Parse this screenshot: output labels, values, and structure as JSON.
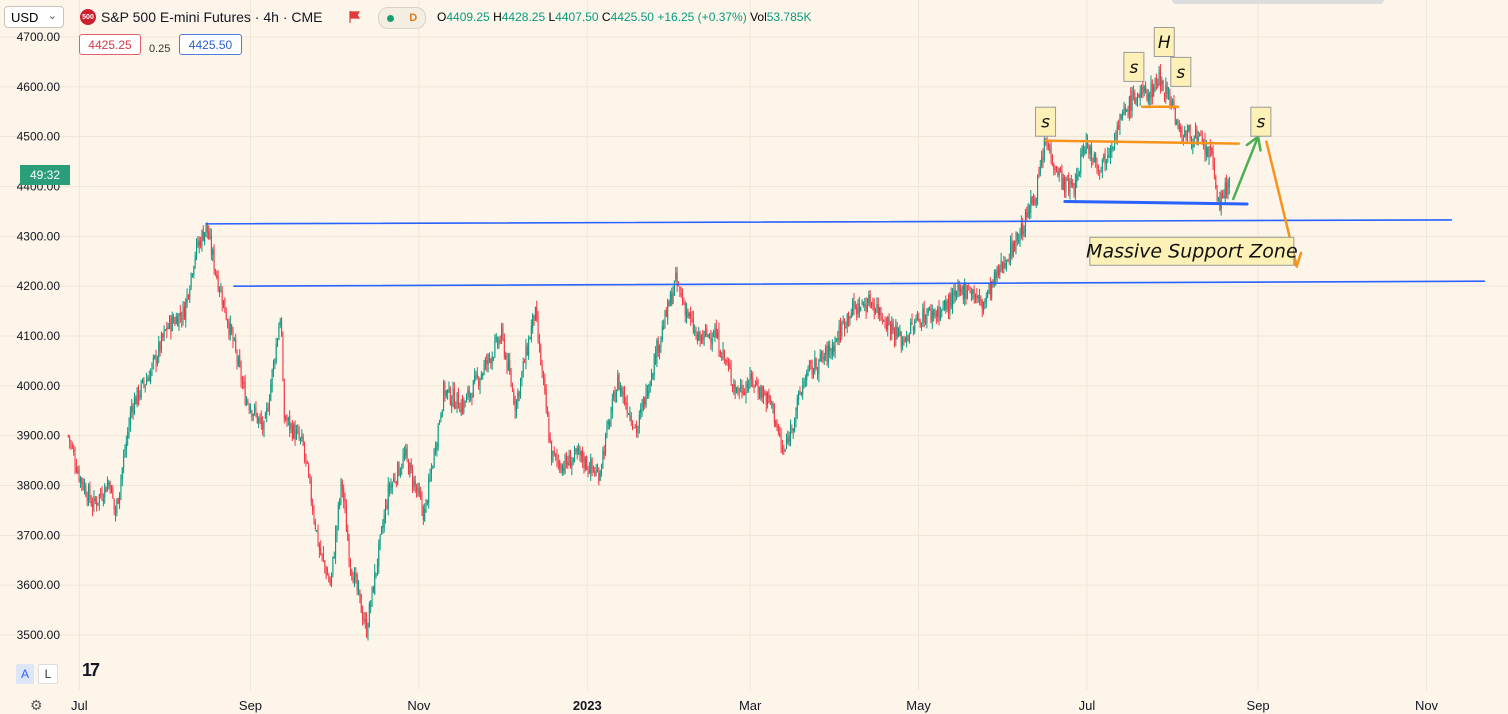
{
  "header": {
    "currency": "USD",
    "symbol_logo": "500",
    "title": "S&P 500 E-mini Futures · 4h · CME",
    "status_badge": "D",
    "ohlc": {
      "o_label": "O",
      "o": "4409.25",
      "h_label": "H",
      "h": "4428.25",
      "l_label": "L",
      "l": "4407.50",
      "c_label": "C",
      "c": "4425.50",
      "change": "+16.25 (+0.37%)",
      "vol_label": "Vol",
      "vol": "53.785K"
    },
    "bid": "4425.25",
    "spread": "0.25",
    "ask": "4425.50",
    "countdown": "49:32"
  },
  "bottom": {
    "auto_label": "A",
    "log_label": "L",
    "logo": "17"
  },
  "chart_data": {
    "type": "candlestick",
    "title": "S&P 500 E-mini Futures · 4h · CME",
    "ylim": [
      3470,
      4730
    ],
    "y_ticks": [
      "4700.00",
      "4600.00",
      "4500.00",
      "4400.00",
      "4300.00",
      "4200.00",
      "4100.00",
      "4000.00",
      "3900.00",
      "3800.00",
      "3700.00",
      "3600.00",
      "3500.00"
    ],
    "x_ticks": [
      "Jul",
      "Sep",
      "Nov",
      "2023",
      "Mar",
      "May",
      "Jul",
      "Sep",
      "Nov"
    ],
    "close_path": [
      [
        "2022-06-27",
        3900
      ],
      [
        "2022-07-01",
        3820
      ],
      [
        "2022-07-06",
        3760
      ],
      [
        "2022-07-12",
        3810
      ],
      [
        "2022-07-14",
        3740
      ],
      [
        "2022-07-20",
        3960
      ],
      [
        "2022-07-27",
        4030
      ],
      [
        "2022-08-02",
        4120
      ],
      [
        "2022-08-08",
        4150
      ],
      [
        "2022-08-12",
        4270
      ],
      [
        "2022-08-16",
        4320
      ],
      [
        "2022-08-19",
        4240
      ],
      [
        "2022-08-26",
        4080
      ],
      [
        "2022-08-30",
        3980
      ],
      [
        "2022-09-06",
        3910
      ],
      [
        "2022-09-12",
        4150
      ],
      [
        "2022-09-13",
        3940
      ],
      [
        "2022-09-20",
        3880
      ],
      [
        "2022-09-26",
        3670
      ],
      [
        "2022-09-30",
        3600
      ],
      [
        "2022-10-04",
        3810
      ],
      [
        "2022-10-07",
        3650
      ],
      [
        "2022-10-13",
        3510
      ],
      [
        "2022-10-21",
        3790
      ],
      [
        "2022-10-27",
        3860
      ],
      [
        "2022-11-03",
        3740
      ],
      [
        "2022-11-10",
        3990
      ],
      [
        "2022-11-17",
        3960
      ],
      [
        "2022-11-25",
        4040
      ],
      [
        "2022-12-01",
        4100
      ],
      [
        "2022-12-06",
        3960
      ],
      [
        "2022-12-13",
        4150
      ],
      [
        "2022-12-19",
        3860
      ],
      [
        "2022-12-23",
        3840
      ],
      [
        "2022-12-29",
        3860
      ],
      [
        "2023-01-05",
        3820
      ],
      [
        "2023-01-12",
        4010
      ],
      [
        "2023-01-19",
        3910
      ],
      [
        "2023-01-26",
        4070
      ],
      [
        "2023-02-02",
        4210
      ],
      [
        "2023-02-10",
        4090
      ],
      [
        "2023-02-16",
        4110
      ],
      [
        "2023-02-24",
        3990
      ],
      [
        "2023-03-02",
        4010
      ],
      [
        "2023-03-09",
        3960
      ],
      [
        "2023-03-13",
        3860
      ],
      [
        "2023-03-21",
        4020
      ],
      [
        "2023-03-30",
        4070
      ],
      [
        "2023-04-06",
        4150
      ],
      [
        "2023-04-14",
        4170
      ],
      [
        "2023-04-25",
        4090
      ],
      [
        "2023-05-02",
        4140
      ],
      [
        "2023-05-09",
        4150
      ],
      [
        "2023-05-19",
        4200
      ],
      [
        "2023-05-24",
        4160
      ],
      [
        "2023-06-01",
        4250
      ],
      [
        "2023-06-08",
        4320
      ],
      [
        "2023-06-13",
        4400
      ],
      [
        "2023-06-16",
        4490
      ],
      [
        "2023-06-23",
        4400
      ],
      [
        "2023-06-27",
        4400
      ],
      [
        "2023-06-30",
        4490
      ],
      [
        "2023-07-06",
        4440
      ],
      [
        "2023-07-13",
        4530
      ],
      [
        "2023-07-18",
        4580
      ],
      [
        "2023-07-24",
        4590
      ],
      [
        "2023-07-27",
        4620
      ],
      [
        "2023-08-01",
        4570
      ],
      [
        "2023-08-03",
        4510
      ],
      [
        "2023-08-09",
        4500
      ],
      [
        "2023-08-15",
        4460
      ],
      [
        "2023-08-18",
        4360
      ],
      [
        "2023-08-22",
        4420
      ]
    ],
    "annotations": [
      {
        "label": "s",
        "date": "2023-06-16",
        "price": 4530
      },
      {
        "label": "s",
        "date": "2023-07-18",
        "price": 4640
      },
      {
        "label": "H",
        "date": "2023-07-29",
        "price": 4690
      },
      {
        "label": "s",
        "date": "2023-08-04",
        "price": 4630
      },
      {
        "label": "s",
        "date": "2023-09-02",
        "price": 4530
      },
      {
        "label": "Massive Support Zone",
        "date": "2023-08-08",
        "price": 4270
      }
    ],
    "trendlines": [
      {
        "color": "#2962ff",
        "from": [
          "2022-08-16",
          4325
        ],
        "to": [
          "2023-11-10",
          4333
        ]
      },
      {
        "color": "#2962ff",
        "from": [
          "2022-08-26",
          4200
        ],
        "to": [
          "2023-11-22",
          4210
        ]
      },
      {
        "color": "#f7931a",
        "from": [
          "2023-06-16",
          4492
        ],
        "to": [
          "2023-08-25",
          4486
        ]
      },
      {
        "color": "#f7931a",
        "from": [
          "2023-07-21",
          4560
        ],
        "to": [
          "2023-08-03",
          4560
        ]
      },
      {
        "color": "#2962ff",
        "from": [
          "2023-06-23",
          4370
        ],
        "to": [
          "2023-08-28",
          4365
        ]
      },
      {
        "color": "#4caf50",
        "from": [
          "2023-08-23",
          4375
        ],
        "to": [
          "2023-09-01",
          4500
        ],
        "arrow": true
      },
      {
        "color": "#f7931a",
        "from": [
          "2023-09-04",
          4490
        ],
        "to": [
          "2023-09-15",
          4240
        ],
        "arrow": true
      }
    ],
    "colors": {
      "up": "#089981",
      "down": "#f23645",
      "background": "#fdf5ea",
      "blue": "#2962ff",
      "orange": "#f7931a",
      "green": "#4caf50",
      "label_bg": "#fdf1b8"
    }
  }
}
